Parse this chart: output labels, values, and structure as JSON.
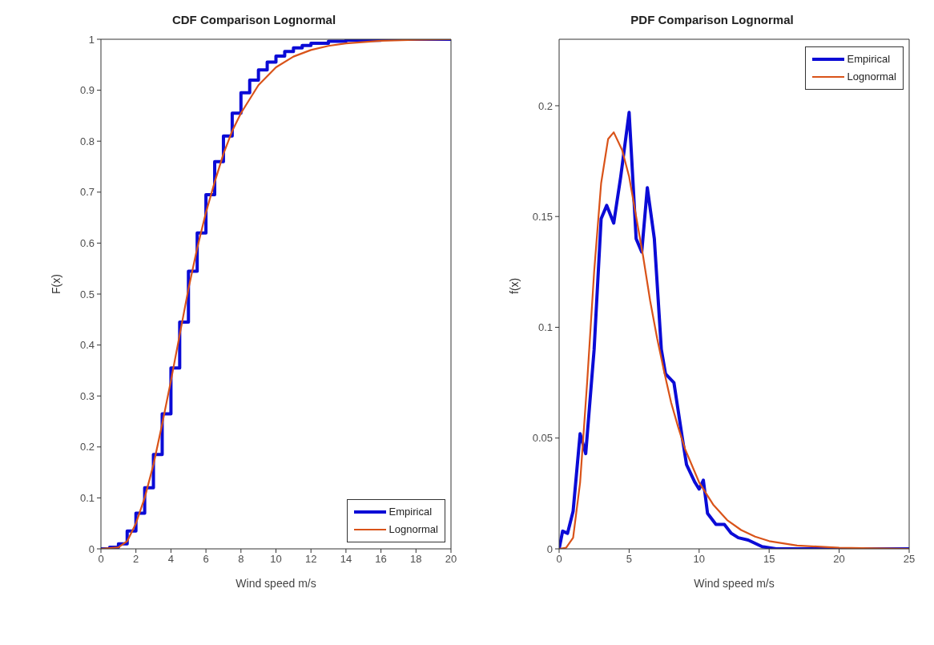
{
  "chart_data": [
    {
      "type": "line",
      "title": "CDF Comparison Lognormal",
      "xlabel": "Wind speed m/s",
      "ylabel": "F(x)",
      "xlim": [
        0,
        20
      ],
      "xticks": [
        0,
        2,
        4,
        6,
        8,
        10,
        12,
        14,
        16,
        18,
        20
      ],
      "ylim": [
        0,
        1
      ],
      "yticks": [
        0,
        0.1,
        0.2,
        0.3,
        0.4,
        0.5,
        0.6,
        0.7,
        0.8,
        0.9,
        1
      ],
      "grid": false,
      "legend": "bottom right",
      "series": [
        {
          "name": "Empirical",
          "type": "step",
          "color": "#0b0bd6",
          "x": [
            0,
            0.5,
            1,
            1.5,
            2,
            2.5,
            3,
            3.5,
            4,
            4.5,
            5,
            5.5,
            6,
            6.5,
            7,
            7.5,
            8,
            8.5,
            9,
            9.5,
            10,
            10.5,
            11,
            11.5,
            12,
            13,
            14,
            16,
            20
          ],
          "values": [
            0,
            0.003,
            0.01,
            0.035,
            0.07,
            0.12,
            0.185,
            0.265,
            0.355,
            0.445,
            0.545,
            0.62,
            0.695,
            0.76,
            0.81,
            0.855,
            0.895,
            0.92,
            0.94,
            0.955,
            0.967,
            0.976,
            0.983,
            0.988,
            0.992,
            0.996,
            0.998,
            1,
            1
          ]
        },
        {
          "name": "Lognormal",
          "type": "line",
          "color": "#d95319",
          "x": [
            0,
            1,
            1.5,
            2,
            2.5,
            3,
            3.5,
            4,
            4.5,
            5,
            5.5,
            6,
            6.5,
            7,
            7.5,
            8,
            9,
            10,
            11,
            12,
            13,
            14,
            16,
            18,
            20
          ],
          "values": [
            0,
            0.003,
            0.015,
            0.05,
            0.1,
            0.165,
            0.245,
            0.33,
            0.42,
            0.51,
            0.59,
            0.66,
            0.72,
            0.775,
            0.82,
            0.855,
            0.91,
            0.945,
            0.966,
            0.979,
            0.987,
            0.992,
            0.997,
            0.999,
            1
          ]
        }
      ]
    },
    {
      "type": "line",
      "title": "PDF Comparison Lognormal",
      "xlabel": "Wind speed m/s",
      "ylabel": "f(x)",
      "xlim": [
        0,
        25
      ],
      "xticks": [
        0,
        5,
        10,
        15,
        20,
        25
      ],
      "ylim": [
        0,
        0.23
      ],
      "yticks": [
        0,
        0.05,
        0.1,
        0.15,
        0.2
      ],
      "grid": false,
      "legend": "top right",
      "series": [
        {
          "name": "Empirical",
          "type": "line",
          "color": "#0b0bd6",
          "x": [
            0,
            0.25,
            0.6,
            1,
            1.5,
            1.9,
            2.5,
            3,
            3.4,
            3.9,
            4.4,
            5,
            5.5,
            5.9,
            6.3,
            6.8,
            7.3,
            7.6,
            8.2,
            8.8,
            9.1,
            9.7,
            10,
            10.3,
            10.6,
            11.2,
            11.8,
            12.3,
            12.8,
            13.5,
            14.5,
            15.5,
            25
          ],
          "values": [
            0,
            0.008,
            0.007,
            0.017,
            0.052,
            0.043,
            0.09,
            0.149,
            0.155,
            0.147,
            0.168,
            0.197,
            0.14,
            0.134,
            0.163,
            0.14,
            0.09,
            0.079,
            0.075,
            0.05,
            0.038,
            0.03,
            0.027,
            0.031,
            0.016,
            0.011,
            0.011,
            0.007,
            0.005,
            0.004,
            0.001,
            0,
            0
          ]
        },
        {
          "name": "Lognormal",
          "type": "line",
          "color": "#d95319",
          "x": [
            0,
            0.5,
            1,
            1.5,
            2,
            2.5,
            3,
            3.5,
            3.9,
            4.5,
            5,
            5.5,
            6,
            6.5,
            7,
            7.5,
            8,
            8.5,
            9,
            10,
            11,
            12,
            13,
            14,
            15,
            17,
            20,
            25
          ],
          "values": [
            0,
            0.0005,
            0.005,
            0.03,
            0.075,
            0.125,
            0.165,
            0.185,
            0.188,
            0.18,
            0.168,
            0.15,
            0.132,
            0.112,
            0.095,
            0.08,
            0.066,
            0.055,
            0.045,
            0.03,
            0.02,
            0.013,
            0.0085,
            0.0055,
            0.0035,
            0.0015,
            0.0005,
            0
          ]
        }
      ]
    }
  ]
}
